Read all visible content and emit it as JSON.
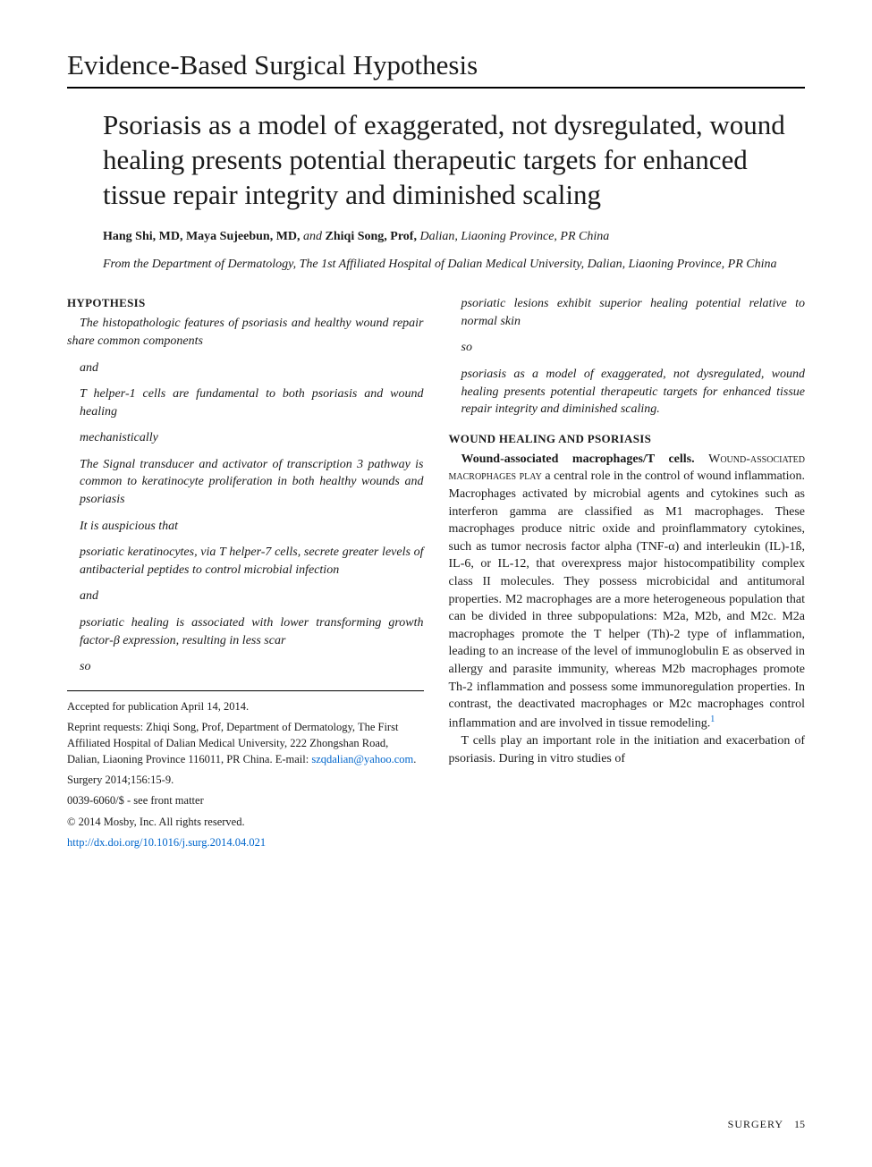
{
  "sectionHeader": "Evidence-Based Surgical Hypothesis",
  "title": "Psoriasis as a model of exaggerated, not dysregulated, wound healing presents potential therapeutic targets for enhanced tissue repair integrity and diminished scaling",
  "authors": {
    "a1_name": "Hang Shi, MD,",
    "a2_name": "Maya Sujeebun, MD,",
    "and": " and ",
    "a3_name": "Zhiqi Song, Prof,",
    "location": " Dalian, Liaoning Province, PR China"
  },
  "affiliation": "From the Department of Dermatology, The 1st Affiliated Hospital of Dalian Medical University, Dalian, Liaoning Province, PR China",
  "hypothesis": {
    "heading": "HYPOTHESIS",
    "p1": "The histopathologic features of psoriasis and healthy wound repair share common components",
    "c1": "and",
    "p2": "T helper-1 cells are fundamental to both psoriasis and wound healing",
    "c2": "mechanistically",
    "p3": "The Signal transducer and activator of transcription 3 pathway is common to keratinocyte proliferation in both healthy wounds and psoriasis",
    "c3": "It is auspicious that",
    "p4": "psoriatic keratinocytes, via T helper-7 cells, secrete greater levels of antibacterial peptides to control microbial infection",
    "c4": "and",
    "p5": "psoriatic healing is associated with lower transforming growth factor-β expression, resulting in less scar",
    "c5": "so",
    "p6": "psoriatic lesions exhibit superior healing potential relative to normal skin",
    "c6": "so",
    "p7": "psoriasis as a model of exaggerated, not dysregulated, wound healing presents potential therapeutic targets for enhanced tissue repair integrity and diminished scaling."
  },
  "footer": {
    "accepted": "Accepted for publication April 14, 2014.",
    "reprint": "Reprint requests: Zhiqi Song, Prof, Department of Dermatology, The First Affiliated Hospital of Dalian Medical University, 222 Zhongshan Road, Dalian, Liaoning Province 116011, PR China. E-mail: ",
    "email": "szqdalian@yahoo.com",
    "period": ".",
    "citation": "Surgery 2014;156:15-9.",
    "issn": "0039-6060/$ - see front matter",
    "copyright": "© 2014 Mosby, Inc. All rights reserved.",
    "doi": "http://dx.doi.org/10.1016/j.surg.2014.04.021"
  },
  "wound": {
    "heading": "WOUND HEALING AND PSORIASIS",
    "runin": "Wound-associated macrophages/T cells. ",
    "lead": "Wound-associated macrophages play ",
    "body1": "a central role in the control of wound inflammation. Macrophages activated by microbial agents and cytokines such as interferon gamma are classified as M1 macrophages. These macrophages produce nitric oxide and proinflammatory cytokines, such as tumor necrosis factor alpha (TNF-α) and interleukin (IL)-1ß, IL-6, or IL-12, that overexpress major histocompatibility complex class II molecules. They possess microbicidal and antitumoral properties. M2 macrophages are a more heterogeneous population that can be divided in three subpopulations: M2a, M2b, and M2c. M2a macrophages promote the T helper (Th)-2 type of inflammation, leading to an increase of the level of immunoglobulin E as observed in allergy and parasite immunity, whereas M2b macrophages promote Th-2 inflammation and possess some immunoregulation properties. In contrast, the deactivated macrophages or M2c macrophages control inflammation and are involved in tissue remodeling.",
    "ref1": "1",
    "body2": "T cells play an important role in the initiation and exacerbation of psoriasis. During in vitro studies of"
  },
  "journalFooter": {
    "name": "SURGERY",
    "page": "15"
  },
  "colors": {
    "link": "#0066cc",
    "text": "#1a1a1a"
  }
}
